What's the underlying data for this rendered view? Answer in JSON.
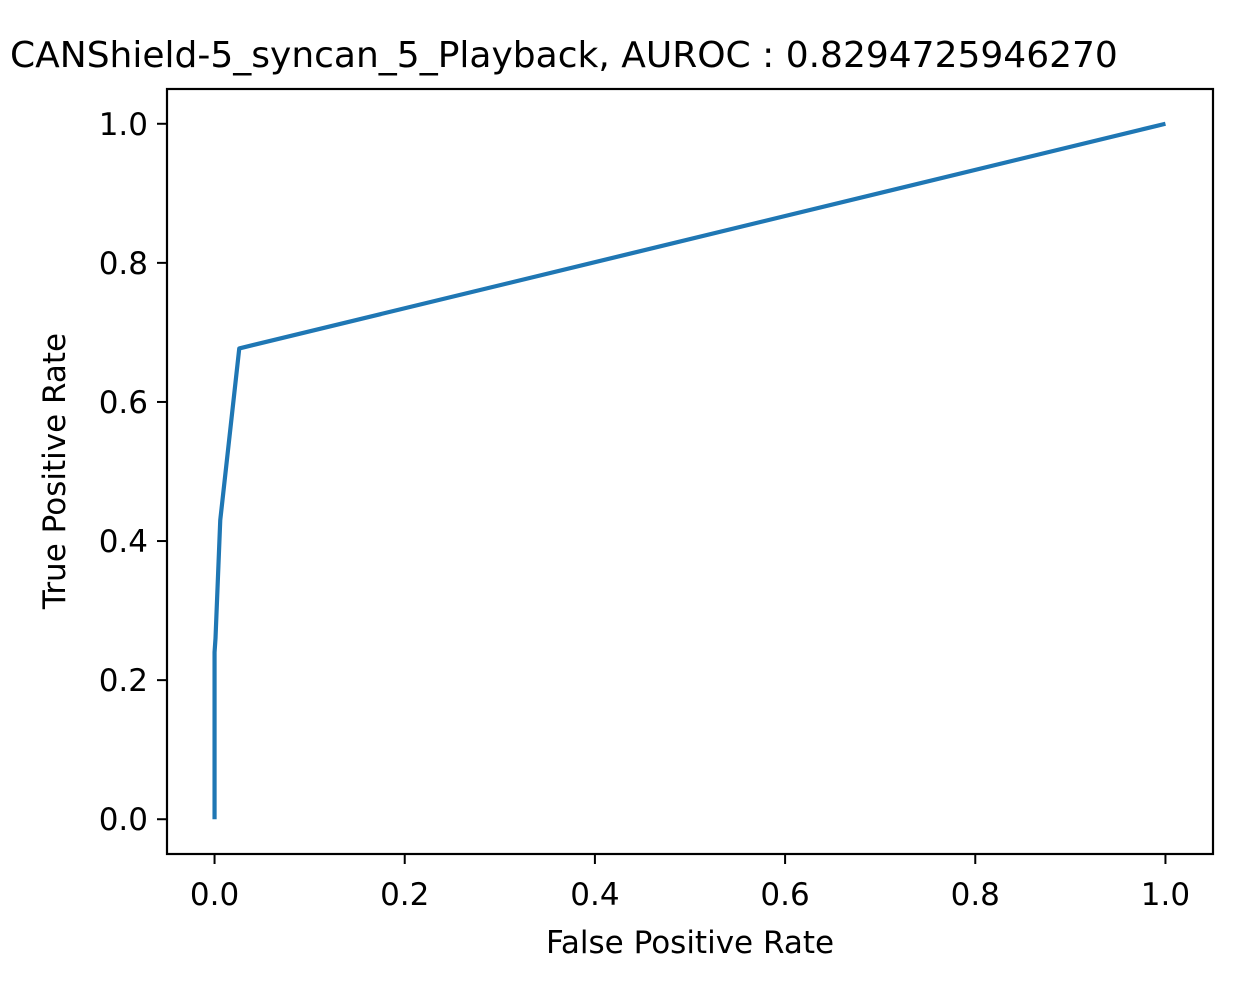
{
  "chart_data": {
    "type": "line",
    "title": "CANShield-5_syncan_5_Playback, AUROC : 0.8294725946270",
    "xlabel": "False Positive Rate",
    "ylabel": "True Positive Rate",
    "xlim": [
      -0.05,
      1.05
    ],
    "ylim": [
      -0.05,
      1.05
    ],
    "xticks": [
      0.0,
      0.2,
      0.4,
      0.6,
      0.8,
      1.0
    ],
    "yticks": [
      0.0,
      0.2,
      0.4,
      0.6,
      0.8,
      1.0
    ],
    "xtick_labels": [
      "0.0",
      "0.2",
      "0.4",
      "0.6",
      "0.8",
      "1.0"
    ],
    "ytick_labels": [
      "0.0",
      "0.2",
      "0.4",
      "0.6",
      "0.8",
      "1.0"
    ],
    "grid": false,
    "line_color": "#1f77b4",
    "series": [
      {
        "x": [
          0.0,
          0.0,
          0.001,
          0.006,
          0.026,
          1.0
        ],
        "y": [
          0.0,
          0.24,
          0.26,
          0.43,
          0.677,
          1.0
        ]
      }
    ]
  }
}
